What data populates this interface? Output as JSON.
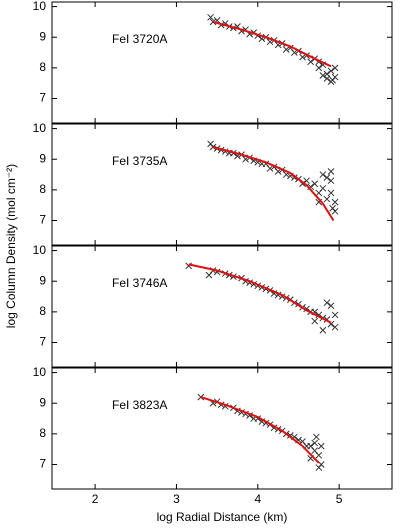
{
  "ylabel": "log Column Density (mol cm⁻²)",
  "xlabel": "log Radial Distance (km)",
  "chart_data": [
    {
      "type": "scatter",
      "title": "FeI 3720A",
      "xlim": [
        1.47,
        5.65
      ],
      "ylim": [
        6.2,
        10.15
      ],
      "xticks": [
        2,
        3,
        4,
        5
      ],
      "yticks": [
        7,
        8,
        9,
        10
      ],
      "series": [
        {
          "color": "#333333",
          "x": [
            3.42,
            3.45,
            3.5,
            3.55,
            3.6,
            3.65,
            3.7,
            3.75,
            3.8,
            3.85,
            3.9,
            3.95,
            4.0,
            4.05,
            4.1,
            4.15,
            4.2,
            4.25,
            4.3,
            4.35,
            4.4,
            4.45,
            4.5,
            4.55,
            4.6,
            4.65,
            4.7,
            4.75,
            4.8,
            4.85,
            4.9,
            4.92,
            4.95,
            4.9,
            4.85,
            4.8,
            4.95,
            4.75
          ],
          "values": [
            9.65,
            9.5,
            9.55,
            9.4,
            9.45,
            9.35,
            9.3,
            9.35,
            9.2,
            9.25,
            9.1,
            9.15,
            9.05,
            8.95,
            9.0,
            8.85,
            8.9,
            8.75,
            8.8,
            8.6,
            8.65,
            8.5,
            8.55,
            8.35,
            8.4,
            8.2,
            8.3,
            8.0,
            8.1,
            7.8,
            7.9,
            7.6,
            7.7,
            7.55,
            7.65,
            7.75,
            8.0,
            8.2
          ]
        },
        {
          "color": "#e01010",
          "line": true,
          "x": [
            3.45,
            3.8,
            4.1,
            4.4,
            4.7,
            4.9
          ],
          "values": [
            9.5,
            9.25,
            9.0,
            8.7,
            8.3,
            8.05
          ]
        }
      ]
    },
    {
      "type": "scatter",
      "title": "FeI 3735A",
      "xlim": [
        1.47,
        5.65
      ],
      "ylim": [
        6.2,
        10.15
      ],
      "xticks": [
        2,
        3,
        4,
        5
      ],
      "yticks": [
        7,
        8,
        9,
        10
      ],
      "series": [
        {
          "color": "#333333",
          "x": [
            3.42,
            3.45,
            3.5,
            3.55,
            3.6,
            3.65,
            3.7,
            3.75,
            3.8,
            3.85,
            3.9,
            3.95,
            4.0,
            4.05,
            4.1,
            4.15,
            4.2,
            4.25,
            4.3,
            4.35,
            4.4,
            4.45,
            4.5,
            4.55,
            4.6,
            4.65,
            4.7,
            4.75,
            4.8,
            4.85,
            4.9,
            4.92,
            4.95,
            4.9,
            4.85,
            4.8,
            4.95,
            4.75,
            4.9
          ],
          "values": [
            9.5,
            9.4,
            9.35,
            9.3,
            9.25,
            9.2,
            9.2,
            9.1,
            9.15,
            9.0,
            9.05,
            8.95,
            8.9,
            8.85,
            8.85,
            8.7,
            8.75,
            8.6,
            8.65,
            8.5,
            8.45,
            8.4,
            8.35,
            8.2,
            8.3,
            8.1,
            8.2,
            7.9,
            8.05,
            7.7,
            7.9,
            7.4,
            7.6,
            8.3,
            8.4,
            8.5,
            7.3,
            7.6,
            8.6
          ]
        },
        {
          "color": "#e01010",
          "line": true,
          "x": [
            3.45,
            3.8,
            4.1,
            4.4,
            4.6,
            4.8,
            4.93
          ],
          "values": [
            9.4,
            9.15,
            8.9,
            8.55,
            8.15,
            7.55,
            7.0
          ]
        }
      ]
    },
    {
      "type": "scatter",
      "title": "FeI 3746A",
      "xlim": [
        1.47,
        5.65
      ],
      "ylim": [
        6.2,
        10.15
      ],
      "xticks": [
        2,
        3,
        4,
        5
      ],
      "yticks": [
        7,
        8,
        9,
        10
      ],
      "series": [
        {
          "color": "#333333",
          "x": [
            3.15,
            3.4,
            3.45,
            3.5,
            3.6,
            3.65,
            3.7,
            3.8,
            3.85,
            3.9,
            3.95,
            4.0,
            4.05,
            4.1,
            4.15,
            4.2,
            4.25,
            4.3,
            4.35,
            4.4,
            4.45,
            4.5,
            4.55,
            4.6,
            4.65,
            4.7,
            4.75,
            4.8,
            4.85,
            4.9,
            4.95,
            4.9,
            4.85,
            4.8,
            4.95,
            4.7
          ],
          "values": [
            9.5,
            9.2,
            9.35,
            9.3,
            9.25,
            9.2,
            9.15,
            9.1,
            9.0,
            8.95,
            8.9,
            8.85,
            8.8,
            8.75,
            8.7,
            8.6,
            8.55,
            8.5,
            8.45,
            8.4,
            8.3,
            8.25,
            8.15,
            8.1,
            8.0,
            8.0,
            7.9,
            7.8,
            7.75,
            7.6,
            7.5,
            8.2,
            8.3,
            7.4,
            7.9,
            7.7
          ]
        },
        {
          "color": "#e01010",
          "line": true,
          "x": [
            3.15,
            3.5,
            3.9,
            4.3,
            4.6,
            4.9
          ],
          "values": [
            9.55,
            9.35,
            9.0,
            8.55,
            8.05,
            7.65
          ]
        }
      ]
    },
    {
      "type": "scatter",
      "title": "FeI 3823A",
      "xlim": [
        1.47,
        5.65
      ],
      "ylim": [
        6.2,
        10.15
      ],
      "xticks": [
        2,
        3,
        4,
        5
      ],
      "yticks": [
        7,
        8,
        9,
        10
      ],
      "series": [
        {
          "color": "#333333",
          "x": [
            3.3,
            3.45,
            3.5,
            3.55,
            3.6,
            3.7,
            3.75,
            3.8,
            3.85,
            3.9,
            3.95,
            4.0,
            4.05,
            4.1,
            4.15,
            4.2,
            4.25,
            4.3,
            4.35,
            4.4,
            4.45,
            4.5,
            4.55,
            4.6,
            4.65,
            4.7,
            4.72,
            4.75,
            4.78,
            4.75,
            4.7,
            4.78,
            4.65
          ],
          "values": [
            9.2,
            9.0,
            9.05,
            8.95,
            8.9,
            8.85,
            8.75,
            8.7,
            8.65,
            8.6,
            8.5,
            8.5,
            8.4,
            8.35,
            8.3,
            8.2,
            8.15,
            8.1,
            8.0,
            7.95,
            7.9,
            7.8,
            7.75,
            7.6,
            7.6,
            7.45,
            7.9,
            7.3,
            7.0,
            6.9,
            7.7,
            7.6,
            7.2
          ]
        },
        {
          "color": "#e01010",
          "line": true,
          "x": [
            3.3,
            3.6,
            4.0,
            4.3,
            4.55,
            4.75
          ],
          "values": [
            9.2,
            8.95,
            8.55,
            8.1,
            7.6,
            7.05
          ]
        }
      ]
    }
  ]
}
